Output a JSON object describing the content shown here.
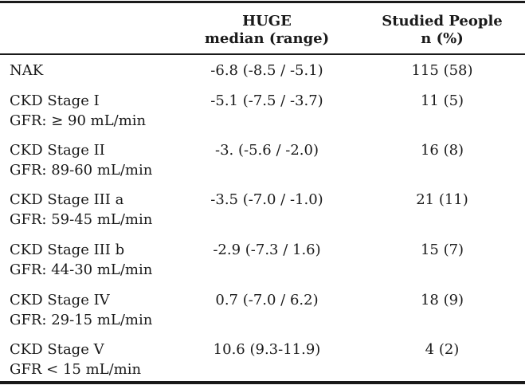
{
  "header": {
    "col1_line1": "HUGE",
    "col1_line2": "median (range)",
    "col2_line1": "Studied People",
    "col2_line2": "n (%)"
  },
  "rows": [
    {
      "label1": "NAK",
      "label2": "",
      "median": "-6.8  (-8.5 / -5.1)",
      "n": "115 (58)"
    },
    {
      "label1": "CKD Stage I",
      "label2": "GFR: ≥ 90 mL/min",
      "median": "-5.1  (-7.5 / -3.7)",
      "n": "11 (5)"
    },
    {
      "label1": "CKD Stage II",
      "label2": "GFR: 89-60 mL/min",
      "median": "-3. (-5.6 / -2.0)",
      "n": "16 (8)"
    },
    {
      "label1": "CKD Stage III a",
      "label2": "GFR: 59-45 mL/min",
      "median": "-3.5 (-7.0 / -1.0)",
      "n": "21 (11)"
    },
    {
      "label1": "CKD Stage III b",
      "label2": "GFR: 44-30 mL/min",
      "median": "-2.9 (-7.3 / 1.6)",
      "n": "15 (7)"
    },
    {
      "label1": "CKD Stage IV",
      "label2": "GFR:  29-15 mL/min",
      "median": "0.7 (-7.0 / 6.2)",
      "n": "18 (9)"
    },
    {
      "label1": "CKD Stage V",
      "label2": "GFR < 15 mL/min",
      "median": "10.6 (9.3-11.9)",
      "n": "4 (2)"
    }
  ]
}
